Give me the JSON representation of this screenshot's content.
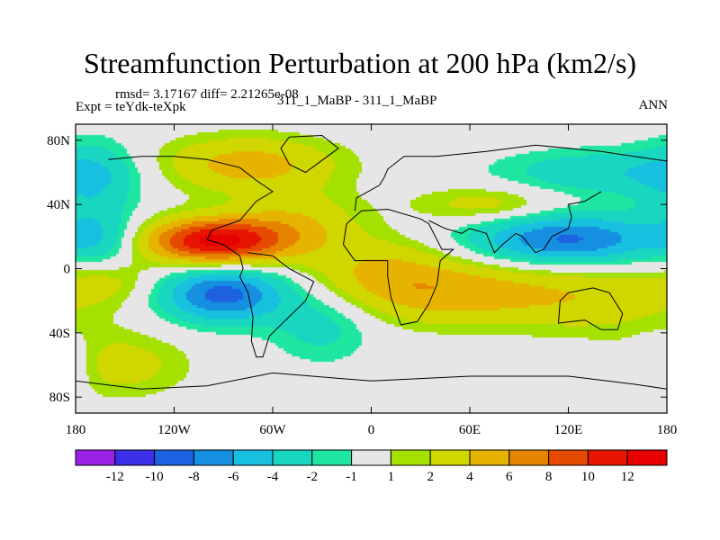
{
  "header": {
    "title": "Streamfunction Perturbation at 200 hPa (km2/s)",
    "stats": "rmsd= 3.17167 diff= 2.21265e-08",
    "expt": "Expt = teYdk-teXpk",
    "case": "311_1_MaBP - 311_1_MaBP",
    "period": "ANN"
  },
  "chart_data": {
    "type": "heatmap",
    "title": "Streamfunction Perturbation at 200 hPa (km2/s)",
    "xlabel": "",
    "ylabel": "",
    "xlim": [
      -180,
      180
    ],
    "ylim": [
      -90,
      90
    ],
    "x_ticks": [
      {
        "value": -180,
        "label": "180"
      },
      {
        "value": -120,
        "label": "120W"
      },
      {
        "value": -60,
        "label": "60W"
      },
      {
        "value": 0,
        "label": "0"
      },
      {
        "value": 60,
        "label": "60E"
      },
      {
        "value": 120,
        "label": "120E"
      },
      {
        "value": 180,
        "label": "180"
      }
    ],
    "y_ticks": [
      {
        "value": 80,
        "label": "80N"
      },
      {
        "value": 40,
        "label": "40N"
      },
      {
        "value": 0,
        "label": "0"
      },
      {
        "value": -40,
        "label": "40S"
      },
      {
        "value": -80,
        "label": "80S"
      }
    ],
    "levels": [
      -12,
      -10,
      -8,
      -6,
      -4,
      -2,
      -1,
      1,
      2,
      4,
      6,
      8,
      10,
      12
    ],
    "level_labels": [
      "-12",
      "-10",
      "-8",
      "-6",
      "-4",
      "-2",
      "-1",
      "1",
      "2",
      "4",
      "6",
      "8",
      "10",
      "12"
    ],
    "colors": [
      "#9a22e6",
      "#3a2ee6",
      "#1c62e0",
      "#168fe0",
      "#18c0e0",
      "#18d6c0",
      "#1ee6a0",
      "#e6e6e6",
      "#a4e000",
      "#cfd600",
      "#e6b400",
      "#e68400",
      "#e64a00",
      "#e61400",
      "#e60000"
    ],
    "features": [
      {
        "lon": -95,
        "lat": 17,
        "amp": 12.5,
        "slon": 30,
        "slat": 10
      },
      {
        "lon": -45,
        "lat": 28,
        "amp": 3.5,
        "slon": 28,
        "slat": 14
      },
      {
        "lon": -90,
        "lat": -16,
        "amp": -9,
        "slon": 26,
        "slat": 12
      },
      {
        "lon": -30,
        "lat": -35,
        "amp": -2.8,
        "slon": 22,
        "slat": 16
      },
      {
        "lon": -75,
        "lat": 65,
        "amp": 5.0,
        "slon": 38,
        "slat": 12
      },
      {
        "lon": -170,
        "lat": 55,
        "amp": -3.5,
        "slon": 20,
        "slat": 18
      },
      {
        "lon": -165,
        "lat": 18,
        "amp": -3.2,
        "slon": 16,
        "slat": 13
      },
      {
        "lon": 120,
        "lat": 18,
        "amp": -8.5,
        "slon": 40,
        "slat": 11
      },
      {
        "lon": 70,
        "lat": 40,
        "amp": 3.0,
        "slon": 30,
        "slat": 8
      },
      {
        "lon": 140,
        "lat": 60,
        "amp": -3.5,
        "slon": 45,
        "slat": 10
      },
      {
        "lon": 50,
        "lat": -15,
        "amp": 5.0,
        "slon": 45,
        "slat": 14
      },
      {
        "lon": 5,
        "lat": 0,
        "amp": 3.2,
        "slon": 30,
        "slat": 14
      },
      {
        "lon": 140,
        "lat": -18,
        "amp": 3.0,
        "slon": 40,
        "slat": 16
      },
      {
        "lon": -155,
        "lat": -60,
        "amp": 3.0,
        "slon": 30,
        "slat": 14
      },
      {
        "lon": 175,
        "lat": -60,
        "amp": -2.5,
        "slon": 12,
        "slat": 12
      },
      {
        "lon": -160,
        "lat": -8,
        "amp": 2.2,
        "slon": 20,
        "slat": 10
      }
    ],
    "coastline_segments": [
      [
        [
          -160,
          68
        ],
        [
          -140,
          70
        ],
        [
          -120,
          70
        ],
        [
          -100,
          68
        ],
        [
          -80,
          63
        ],
        [
          -70,
          55
        ],
        [
          -60,
          48
        ],
        [
          -70,
          42
        ],
        [
          -80,
          30
        ],
        [
          -97,
          24
        ],
        [
          -100,
          18
        ],
        [
          -90,
          15
        ],
        [
          -80,
          8
        ]
      ],
      [
        [
          -80,
          8
        ],
        [
          -78,
          0
        ],
        [
          -80,
          -5
        ],
        [
          -75,
          -15
        ],
        [
          -72,
          -30
        ],
        [
          -73,
          -45
        ],
        [
          -70,
          -55
        ],
        [
          -66,
          -55
        ],
        [
          -62,
          -42
        ],
        [
          -48,
          -28
        ],
        [
          -40,
          -20
        ],
        [
          -35,
          -8
        ],
        [
          -50,
          0
        ],
        [
          -60,
          8
        ],
        [
          -75,
          10
        ]
      ],
      [
        [
          -50,
          82
        ],
        [
          -30,
          83
        ],
        [
          -20,
          75
        ],
        [
          -40,
          60
        ],
        [
          -50,
          65
        ],
        [
          -55,
          75
        ],
        [
          -50,
          82
        ]
      ],
      [
        [
          -15,
          28
        ],
        [
          -17,
          15
        ],
        [
          -10,
          5
        ],
        [
          10,
          5
        ],
        [
          10,
          -5
        ],
        [
          12,
          -18
        ],
        [
          18,
          -35
        ],
        [
          28,
          -33
        ],
        [
          35,
          -22
        ],
        [
          40,
          -10
        ],
        [
          42,
          5
        ],
        [
          50,
          12
        ],
        [
          43,
          12
        ],
        [
          35,
          28
        ],
        [
          30,
          31
        ],
        [
          10,
          37
        ],
        [
          -6,
          36
        ],
        [
          -15,
          28
        ]
      ],
      [
        [
          -10,
          36
        ],
        [
          -9,
          44
        ],
        [
          -2,
          48
        ],
        [
          5,
          52
        ],
        [
          8,
          57
        ],
        [
          10,
          62
        ],
        [
          20,
          70
        ],
        [
          40,
          70
        ],
        [
          70,
          73
        ],
        [
          100,
          77
        ],
        [
          140,
          73
        ],
        [
          160,
          70
        ],
        [
          180,
          67
        ]
      ],
      [
        [
          35,
          30
        ],
        [
          45,
          25
        ],
        [
          55,
          22
        ],
        [
          60,
          25
        ],
        [
          70,
          22
        ],
        [
          75,
          10
        ],
        [
          80,
          15
        ],
        [
          88,
          22
        ],
        [
          92,
          20
        ],
        [
          100,
          10
        ],
        [
          105,
          12
        ],
        [
          110,
          20
        ],
        [
          120,
          25
        ],
        [
          122,
          32
        ],
        [
          120,
          40
        ],
        [
          130,
          42
        ],
        [
          140,
          48
        ]
      ],
      [
        [
          115,
          -20
        ],
        [
          114,
          -34
        ],
        [
          130,
          -32
        ],
        [
          140,
          -38
        ],
        [
          150,
          -38
        ],
        [
          153,
          -28
        ],
        [
          145,
          -15
        ],
        [
          135,
          -12
        ],
        [
          120,
          -15
        ],
        [
          115,
          -20
        ]
      ],
      [
        [
          -180,
          -70
        ],
        [
          -140,
          -75
        ],
        [
          -100,
          -73
        ],
        [
          -60,
          -65
        ],
        [
          0,
          -70
        ],
        [
          60,
          -67
        ],
        [
          120,
          -67
        ],
        [
          160,
          -72
        ],
        [
          180,
          -75
        ]
      ]
    ]
  },
  "colorbar": {
    "min_label": "-12",
    "max_label": "12"
  }
}
